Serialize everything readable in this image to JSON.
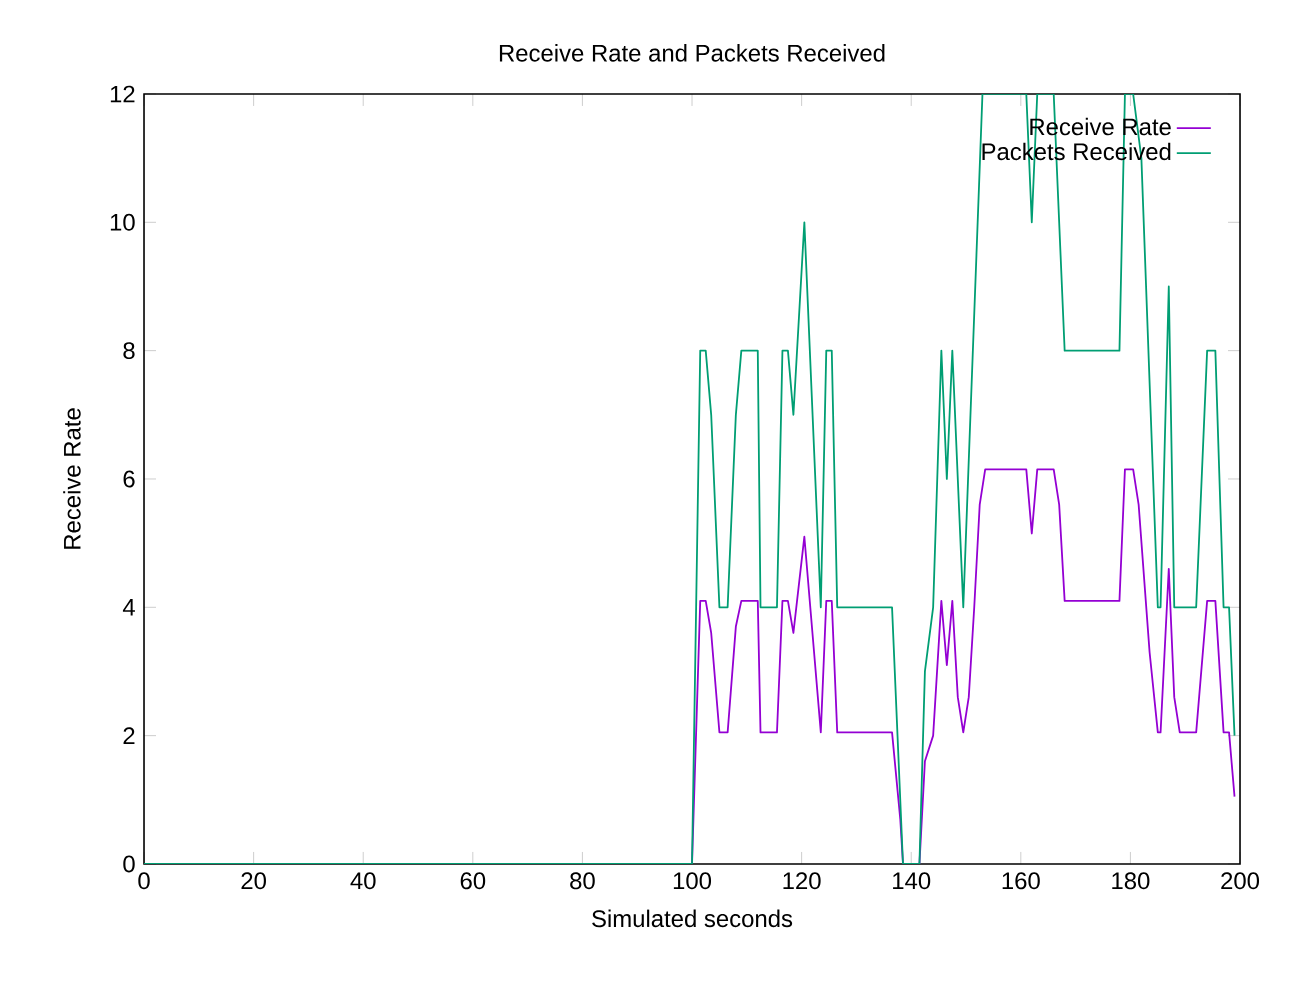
{
  "chart_data": {
    "type": "line",
    "title": "Receive Rate  and Packets Received",
    "xlabel": "Simulated seconds",
    "ylabel": "Receive Rate",
    "xlim": [
      0,
      200
    ],
    "ylim": [
      0,
      12
    ],
    "xticks": [
      0,
      20,
      40,
      60,
      80,
      100,
      120,
      140,
      160,
      180,
      200
    ],
    "yticks": [
      0,
      2,
      4,
      6,
      8,
      10,
      12
    ],
    "legend": "top right",
    "grid": false,
    "series": [
      {
        "name": "Receive Rate",
        "color": "#9400d3",
        "x": [
          0,
          100,
          101.5,
          102.5,
          103.5,
          105,
          106.5,
          108,
          109,
          112,
          112.5,
          115.5,
          116.5,
          117.5,
          118.5,
          120.5,
          123.5,
          124.5,
          125.5,
          126.5,
          136.5,
          138,
          138.5,
          141.5,
          142.5,
          144,
          145.5,
          146.5,
          147.5,
          148.5,
          149.5,
          150.5,
          151.5,
          152.5,
          153.5,
          161,
          162,
          163,
          166,
          167,
          168,
          178,
          179,
          180.5,
          181.5,
          183.5,
          185,
          185.5,
          187,
          188,
          189,
          192,
          194,
          195.5,
          197,
          198,
          199
        ],
        "values": [
          0,
          0,
          4.1,
          4.1,
          3.6,
          2.05,
          2.05,
          3.7,
          4.1,
          4.1,
          2.05,
          2.05,
          4.1,
          4.1,
          3.6,
          5.1,
          2.05,
          4.1,
          4.1,
          2.05,
          2.05,
          0.7,
          0,
          0,
          1.6,
          2,
          4.1,
          3.1,
          4.1,
          2.6,
          2.05,
          2.6,
          4,
          5.6,
          6.15,
          6.15,
          5.15,
          6.15,
          6.15,
          5.6,
          4.1,
          4.1,
          6.15,
          6.15,
          5.6,
          3.3,
          2.05,
          2.05,
          4.6,
          2.6,
          2.05,
          2.05,
          4.1,
          4.1,
          2.05,
          2.05,
          1.05
        ]
      },
      {
        "name": "Packets Received",
        "color": "#009e73",
        "x": [
          0,
          100,
          101.5,
          102.5,
          103.5,
          105,
          106.5,
          108,
          109,
          112,
          112.5,
          115.5,
          116.5,
          117.5,
          118.5,
          120.5,
          123.5,
          124.5,
          125.5,
          126.5,
          136.5,
          138.5,
          141.5,
          142.5,
          144,
          145.5,
          146.5,
          147.5,
          149.5,
          153,
          161,
          162,
          163,
          166,
          168,
          178,
          179,
          180.5,
          182,
          185,
          185.5,
          187,
          188,
          192,
          194,
          195.5,
          197,
          198,
          199
        ],
        "values": [
          0,
          0,
          8,
          8,
          7,
          4,
          4,
          7,
          8,
          8,
          4,
          4,
          8,
          8,
          7,
          10,
          4,
          8,
          8,
          4,
          4,
          0,
          0,
          3,
          4,
          8,
          6,
          8,
          4,
          12,
          12,
          10,
          12,
          12,
          8,
          8,
          12,
          12,
          11,
          4,
          4,
          9,
          4,
          4,
          8,
          8,
          4,
          4,
          2
        ]
      }
    ]
  }
}
